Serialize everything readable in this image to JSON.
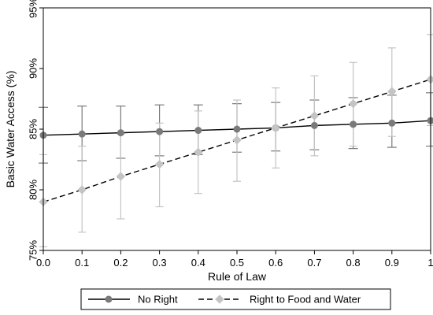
{
  "chart_data": {
    "type": "line",
    "xlabel": "Rule of Law",
    "ylabel": "Basic Water Access (%)",
    "xlim": [
      0,
      1
    ],
    "ylim": [
      75,
      95
    ],
    "x": [
      0.0,
      0.1,
      0.2,
      0.3,
      0.4,
      0.5,
      0.6,
      0.7,
      0.8,
      0.9,
      1.0
    ],
    "x_tick_labels": [
      "0.0",
      "0.1",
      "0.2",
      "0.3",
      "0.4",
      "0.5",
      "0.6",
      "0.7",
      "0.8",
      "0.9",
      "1"
    ],
    "y_ticks": [
      75,
      80,
      85,
      90,
      95
    ],
    "y_tick_labels": [
      "75%",
      "80%",
      "85%",
      "90%",
      "95%"
    ],
    "grid": false,
    "legend_position": "bottom",
    "series": [
      {
        "name": "No Right",
        "color": "#7a7a7a",
        "line_style": "solid",
        "marker": "circle",
        "values": [
          84.5,
          84.6,
          84.7,
          84.8,
          84.9,
          85.0,
          85.1,
          85.3,
          85.4,
          85.5,
          85.7
        ],
        "ci_low": [
          82.2,
          82.4,
          82.6,
          82.8,
          82.9,
          83.1,
          83.2,
          83.3,
          83.4,
          83.5,
          83.6
        ],
        "ci_high": [
          86.8,
          86.9,
          86.9,
          87.0,
          87.0,
          87.1,
          87.2,
          87.4,
          87.6,
          87.8,
          88.0
        ]
      },
      {
        "name": "Right to Food and Water",
        "color": "#c4c4c4",
        "line_style": "dashed",
        "marker": "diamond",
        "values": [
          79.0,
          80.0,
          81.1,
          82.1,
          83.1,
          84.1,
          85.1,
          86.1,
          87.1,
          88.1,
          89.1
        ],
        "ci_low": [
          75.3,
          76.5,
          77.6,
          78.6,
          79.7,
          80.7,
          81.8,
          82.8,
          83.6,
          84.4,
          85.3
        ],
        "ci_high": [
          82.9,
          83.6,
          84.6,
          85.5,
          86.5,
          87.4,
          88.4,
          89.4,
          90.5,
          91.7,
          92.8
        ]
      }
    ]
  }
}
